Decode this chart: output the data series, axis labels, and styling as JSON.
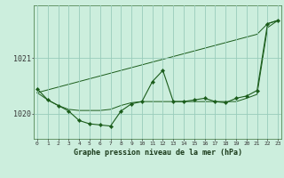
{
  "title": "Graphe pression niveau de la mer (hPa)",
  "bg_color": "#cceedd",
  "grid_color": "#99ccbb",
  "line_color": "#1a5c1a",
  "x_values": [
    0,
    1,
    2,
    3,
    4,
    5,
    6,
    7,
    8,
    9,
    10,
    11,
    12,
    13,
    14,
    15,
    16,
    17,
    18,
    19,
    20,
    21,
    22,
    23
  ],
  "y_main": [
    1020.45,
    1020.25,
    1020.15,
    1020.05,
    1019.88,
    1019.82,
    1019.8,
    1019.78,
    1020.05,
    1020.18,
    1020.22,
    1020.58,
    1020.78,
    1020.22,
    1020.22,
    1020.25,
    1020.28,
    1020.22,
    1020.2,
    1020.28,
    1020.32,
    1020.42,
    1021.62,
    1021.68
  ],
  "y_trend": [
    1020.38,
    1020.43,
    1020.48,
    1020.53,
    1020.58,
    1020.63,
    1020.68,
    1020.73,
    1020.78,
    1020.83,
    1020.88,
    1020.93,
    1020.98,
    1021.03,
    1021.08,
    1021.13,
    1021.18,
    1021.23,
    1021.28,
    1021.33,
    1021.38,
    1021.43,
    1021.62,
    1021.68
  ],
  "y_lower": [
    1020.38,
    1020.25,
    1020.15,
    1020.08,
    1020.06,
    1020.06,
    1020.06,
    1020.08,
    1020.15,
    1020.2,
    1020.22,
    1020.22,
    1020.22,
    1020.22,
    1020.22,
    1020.22,
    1020.22,
    1020.22,
    1020.22,
    1020.22,
    1020.28,
    1020.35,
    1021.55,
    1021.68
  ],
  "ytick_vals": [
    1020,
    1021
  ],
  "ytick_labels": [
    "1020",
    "1021"
  ],
  "ylim": [
    1019.55,
    1021.95
  ],
  "xlim": [
    -0.3,
    23.3
  ],
  "xtick_labels": [
    "0",
    "1",
    "2",
    "3",
    "4",
    "5",
    "6",
    "7",
    "8",
    "9",
    "10",
    "11",
    "12",
    "13",
    "14",
    "15",
    "16",
    "17",
    "18",
    "19",
    "20",
    "21",
    "22",
    "23"
  ]
}
